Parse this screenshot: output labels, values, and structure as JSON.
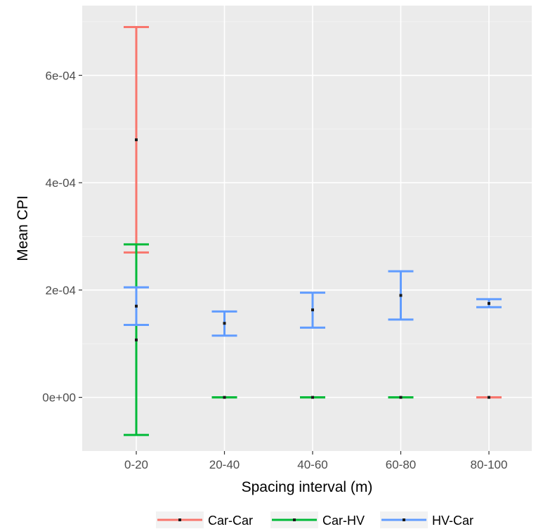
{
  "chart_data": {
    "type": "errorbar",
    "xlabel": "Spacing interval (m)",
    "ylabel": "Mean CPI",
    "categories": [
      "0-20",
      "20-40",
      "40-60",
      "60-80",
      "80-100"
    ],
    "ylim": [
      -0.0001,
      0.00073
    ],
    "yticks": [
      0,
      0.0002,
      0.0004,
      0.0006
    ],
    "ytick_labels": [
      "0e+00",
      "2e-04",
      "4e-04",
      "6e-04"
    ],
    "grid": true,
    "legend_position": "bottom",
    "series": [
      {
        "name": "Car-Car",
        "color": "#F8766D",
        "points": [
          {
            "category": "0-20",
            "mean": 0.00048,
            "lower": 0.00027,
            "upper": 0.00069
          },
          {
            "category": "80-100",
            "mean": 0.0,
            "lower": 0.0,
            "upper": 0.0
          }
        ]
      },
      {
        "name": "Car-HV",
        "color": "#00BA38",
        "points": [
          {
            "category": "0-20",
            "mean": 0.000107,
            "lower": -7e-05,
            "upper": 0.000285
          },
          {
            "category": "20-40",
            "mean": 0.0,
            "lower": 0.0,
            "upper": 0.0
          },
          {
            "category": "40-60",
            "mean": 0.0,
            "lower": 0.0,
            "upper": 0.0
          },
          {
            "category": "60-80",
            "mean": 0.0,
            "lower": 0.0,
            "upper": 0.0
          }
        ]
      },
      {
        "name": "HV-Car",
        "color": "#619CFF",
        "points": [
          {
            "category": "0-20",
            "mean": 0.00017,
            "lower": 0.000135,
            "upper": 0.000205
          },
          {
            "category": "20-40",
            "mean": 0.000138,
            "lower": 0.000115,
            "upper": 0.00016
          },
          {
            "category": "40-60",
            "mean": 0.000163,
            "lower": 0.00013,
            "upper": 0.000195
          },
          {
            "category": "60-80",
            "mean": 0.00019,
            "lower": 0.000145,
            "upper": 0.000235
          },
          {
            "category": "80-100",
            "mean": 0.000175,
            "lower": 0.000168,
            "upper": 0.000183
          }
        ]
      }
    ]
  }
}
